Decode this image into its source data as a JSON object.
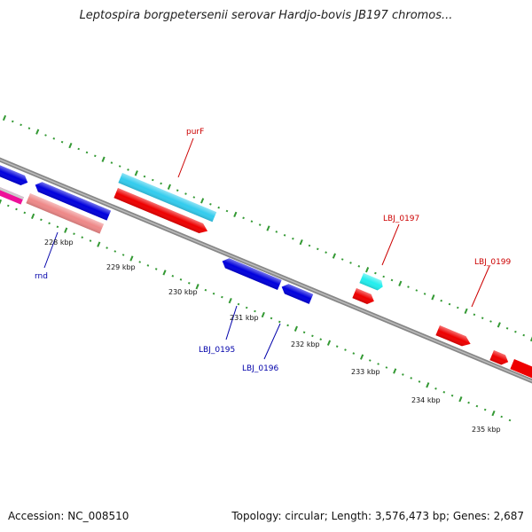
{
  "title": "Leptospira borgpetersenii serovar Hardjo-bovis JB197 chromos...",
  "accession": "Accession: NC_008510",
  "stats": "Topology: circular; Length: 3,576,473 bp; Genes: 2,687",
  "scale": [
    "228 kbp",
    "229 kbp",
    "230 kbp",
    "231 kbp",
    "232 kbp",
    "233 kbp",
    "234 kbp",
    "235 kbp"
  ],
  "gene_labels": {
    "purF": "purF",
    "rnd": "rnd",
    "LBJ_0195": "LBJ_0195",
    "LBJ_0196": "LBJ_0196",
    "LBJ_0197": "LBJ_0197",
    "LBJ_0199": "LBJ_0199"
  },
  "colors": {
    "backbone": "#888888",
    "forward_cds": "#ee0000",
    "reverse_cds": "#0000dd",
    "forward_rna": "#33ccee",
    "reverse_pseudo": "#ee8888",
    "misc": "#ee1199",
    "gc_skew": "#339933",
    "label_red": "#cc0000",
    "label_blue": "#0000aa"
  }
}
